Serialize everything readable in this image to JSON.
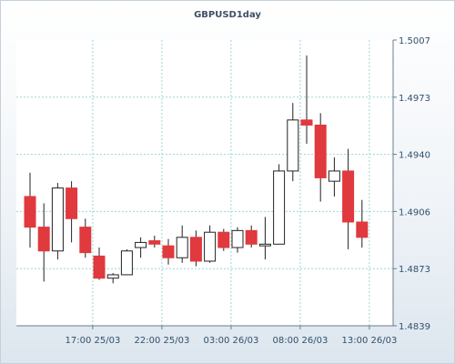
{
  "chart_data": {
    "type": "candlestick",
    "title": "GBPUSD1day",
    "x_tick_labels": [
      "17:00 25/03",
      "22:00 25/03",
      "03:00 26/03",
      "08:00 26/03",
      "13:00 26/03"
    ],
    "y_tick_labels": [
      "1.5007",
      "1.4973",
      "1.4940",
      "1.4906",
      "1.4873",
      "1.4839"
    ],
    "ylim": [
      1.4839,
      1.5007
    ],
    "grid": true,
    "colors": {
      "up": "#ffffff",
      "down": "#e0393e",
      "wick": "#222222",
      "grid": "#9ed6d6"
    },
    "candles": [
      {
        "open": 1.4915,
        "high": 1.4929,
        "low": 1.4885,
        "close": 1.4897
      },
      {
        "open": 1.4897,
        "high": 1.4911,
        "low": 1.4865,
        "close": 1.4883
      },
      {
        "open": 1.4883,
        "high": 1.4923,
        "low": 1.4878,
        "close": 1.492
      },
      {
        "open": 1.492,
        "high": 1.4924,
        "low": 1.4888,
        "close": 1.4902
      },
      {
        "open": 1.4897,
        "high": 1.4902,
        "low": 1.4879,
        "close": 1.4882
      },
      {
        "open": 1.488,
        "high": 1.4885,
        "low": 1.4866,
        "close": 1.4867
      },
      {
        "open": 1.4867,
        "high": 1.487,
        "low": 1.4864,
        "close": 1.4869
      },
      {
        "open": 1.4869,
        "high": 1.4884,
        "low": 1.4869,
        "close": 1.4883
      },
      {
        "open": 1.4885,
        "high": 1.4891,
        "low": 1.4879,
        "close": 1.4888
      },
      {
        "open": 1.4889,
        "high": 1.4892,
        "low": 1.4885,
        "close": 1.4887
      },
      {
        "open": 1.4886,
        "high": 1.489,
        "low": 1.4875,
        "close": 1.4879
      },
      {
        "open": 1.4879,
        "high": 1.4898,
        "low": 1.4876,
        "close": 1.4891
      },
      {
        "open": 1.4891,
        "high": 1.4895,
        "low": 1.4874,
        "close": 1.4877
      },
      {
        "open": 1.4877,
        "high": 1.4898,
        "low": 1.4876,
        "close": 1.4894
      },
      {
        "open": 1.4894,
        "high": 1.4896,
        "low": 1.4883,
        "close": 1.4885
      },
      {
        "open": 1.4885,
        "high": 1.4897,
        "low": 1.4882,
        "close": 1.4895
      },
      {
        "open": 1.4895,
        "high": 1.4898,
        "low": 1.4885,
        "close": 1.4887
      },
      {
        "open": 1.4886,
        "high": 1.4903,
        "low": 1.4878,
        "close": 1.4887
      },
      {
        "open": 1.4887,
        "high": 1.4934,
        "low": 1.4887,
        "close": 1.493
      },
      {
        "open": 1.493,
        "high": 1.497,
        "low": 1.4924,
        "close": 1.496
      },
      {
        "open": 1.496,
        "high": 1.4998,
        "low": 1.4946,
        "close": 1.4957
      },
      {
        "open": 1.4957,
        "high": 1.4964,
        "low": 1.4912,
        "close": 1.4926
      },
      {
        "open": 1.4924,
        "high": 1.4938,
        "low": 1.4915,
        "close": 1.493
      },
      {
        "open": 1.493,
        "high": 1.4943,
        "low": 1.4884,
        "close": 1.49
      },
      {
        "open": 1.49,
        "high": 1.4913,
        "low": 1.4885,
        "close": 1.4891
      }
    ]
  }
}
